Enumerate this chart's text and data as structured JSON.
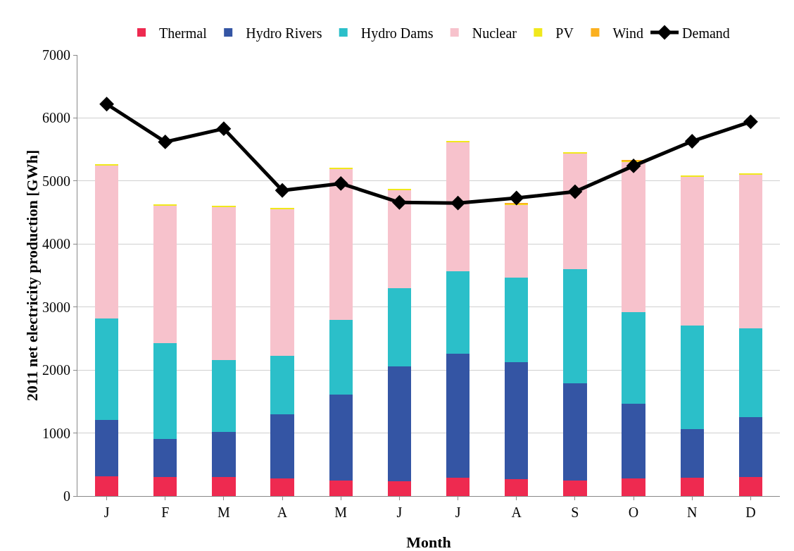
{
  "chart_data": {
    "type": "bar",
    "stacked": true,
    "xlabel": "Month",
    "ylabel": "2011 net electricity production [GWh]",
    "categories": [
      "J",
      "F",
      "M",
      "A",
      "M",
      "J",
      "J",
      "A",
      "S",
      "O",
      "N",
      "D"
    ],
    "series": [
      {
        "name": "Thermal",
        "color": "#ee2a50",
        "values": [
          310,
          300,
          300,
          280,
          250,
          240,
          290,
          270,
          250,
          280,
          290,
          300
        ]
      },
      {
        "name": "Hydro Rivers",
        "color": "#3455a4",
        "values": [
          900,
          610,
          720,
          1020,
          1360,
          1820,
          1970,
          1850,
          1540,
          1190,
          770,
          950
        ]
      },
      {
        "name": "Hydro Dams",
        "color": "#2bbfc9",
        "values": [
          1610,
          1520,
          1140,
          920,
          1190,
          1240,
          1310,
          1350,
          1810,
          1450,
          1650,
          1410
        ]
      },
      {
        "name": "Nuclear",
        "color": "#f7c2cc",
        "values": [
          2430,
          2180,
          2430,
          2340,
          2390,
          1560,
          2050,
          1150,
          1840,
          2390,
          2360,
          2450
        ]
      },
      {
        "name": "PV",
        "color": "#f0e81c",
        "values": [
          10,
          10,
          20,
          10,
          20,
          20,
          20,
          20,
          10,
          10,
          10,
          10
        ]
      },
      {
        "name": "Wind",
        "color": "#fbb01f",
        "values": [
          0,
          0,
          0,
          0,
          0,
          0,
          0,
          10,
          0,
          10,
          0,
          0
        ]
      },
      {
        "name": "Demand",
        "type": "line",
        "color": "#000000",
        "values": [
          6220,
          5620,
          5830,
          4850,
          4960,
          4660,
          4650,
          4730,
          4830,
          5240,
          5630,
          5940
        ]
      }
    ],
    "marker": "diamond",
    "line_style": "solid",
    "ylim": [
      0,
      7000
    ],
    "yticks": [
      0,
      1000,
      2000,
      3000,
      4000,
      5000,
      6000,
      7000
    ],
    "grid": "y",
    "legend": "top"
  }
}
